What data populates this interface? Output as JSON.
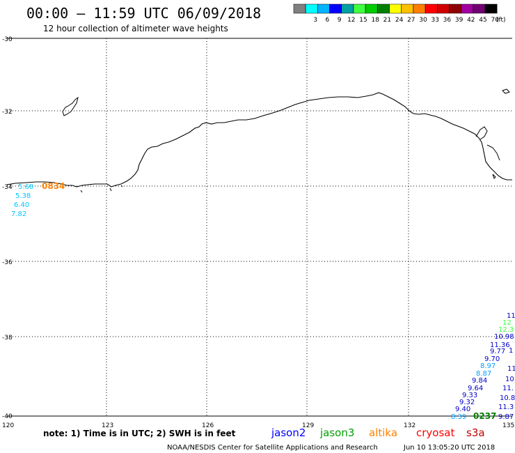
{
  "header": {
    "title": "00:00 – 11:59 UTC 06/09/2018",
    "subtitle": "12 hour collection of altimeter wave heights"
  },
  "legend": {
    "unit": "(ft)",
    "swatches": [
      {
        "color": "#808080",
        "label": ""
      },
      {
        "color": "#00ffff",
        "label": "3"
      },
      {
        "color": "#00b4ff",
        "label": "6"
      },
      {
        "color": "#0000ff",
        "label": "9"
      },
      {
        "color": "#00a0a0",
        "label": "12"
      },
      {
        "color": "#40ff40",
        "label": "15"
      },
      {
        "color": "#00cc00",
        "label": "18"
      },
      {
        "color": "#008000",
        "label": "21"
      },
      {
        "color": "#ffff00",
        "label": "24"
      },
      {
        "color": "#ffc000",
        "label": "27"
      },
      {
        "color": "#ff8000",
        "label": "30"
      },
      {
        "color": "#ff0000",
        "label": "33"
      },
      {
        "color": "#d00000",
        "label": "36"
      },
      {
        "color": "#900000",
        "label": "39"
      },
      {
        "color": "#a000a0",
        "label": "42"
      },
      {
        "color": "#700070",
        "label": "45"
      },
      {
        "color": "#000000",
        "label": "70"
      }
    ]
  },
  "axes": {
    "lat_labels": [
      "-30",
      "-32",
      "-34",
      "-36",
      "-38",
      "-40"
    ],
    "lon_labels": [
      "123",
      "126",
      "129",
      "132"
    ],
    "corner_left": "120",
    "corner_right": "135"
  },
  "observations": {
    "west_pass": {
      "time": "0834",
      "color": "#ff8000",
      "values": [
        {
          "text": "5.68",
          "color": "#00c8ff"
        },
        {
          "text": "5.38",
          "color": "#00c8ff"
        },
        {
          "text": "6.40",
          "color": "#00c8ff"
        },
        {
          "text": "7.82",
          "color": "#00c8ff"
        }
      ]
    },
    "east_pass": {
      "time": "0237",
      "color": "#008000",
      "values_a": [
        {
          "text": "10.98",
          "color": "#0000c8"
        },
        {
          "text": "11.36",
          "color": "#0000c8"
        },
        {
          "text": "9.77",
          "color": "#0000c8"
        },
        {
          "text": "9.70",
          "color": "#0000c8"
        },
        {
          "text": "8.97",
          "color": "#00a0ff"
        },
        {
          "text": "8.87",
          "color": "#00a0ff"
        },
        {
          "text": "9.84",
          "color": "#0000c8"
        },
        {
          "text": "9.64",
          "color": "#0000c8"
        },
        {
          "text": "9.33",
          "color": "#0000c8"
        },
        {
          "text": "9.32",
          "color": "#0000c8"
        },
        {
          "text": "9.40",
          "color": "#0000c8"
        },
        {
          "text": "8.39",
          "color": "#00a0ff"
        }
      ],
      "values_b": [
        {
          "text": "11",
          "color": "#0000c8"
        },
        {
          "text": "12",
          "color": "#40ff40"
        },
        {
          "text": "12.3",
          "color": "#40ff40"
        },
        {
          "text": "1",
          "color": "#0000c8"
        },
        {
          "text": "11",
          "color": "#0000c8"
        },
        {
          "text": "10.",
          "color": "#0000c8"
        },
        {
          "text": "11.",
          "color": "#0000c8"
        },
        {
          "text": "10.8",
          "color": "#0000c8"
        },
        {
          "text": "11.3",
          "color": "#0000c8"
        },
        {
          "text": "9.87",
          "color": "#0000c8"
        }
      ]
    }
  },
  "footer": {
    "note": "note:  1) Time is in UTC;  2) SWH is in feet",
    "satellites": [
      {
        "name": "jason2",
        "color": "#0000ff"
      },
      {
        "name": "jason3",
        "color": "#00a000"
      },
      {
        "name": "altika",
        "color": "#ff8000"
      },
      {
        "name": "cryosat",
        "color": "#ff0000"
      },
      {
        "name": "s3a",
        "color": "#c00000"
      }
    ],
    "credit": "NOAA/NESDIS Center for Satellite Applications and Research",
    "generated": "Jun 10 13:05:20 UTC 2018"
  }
}
